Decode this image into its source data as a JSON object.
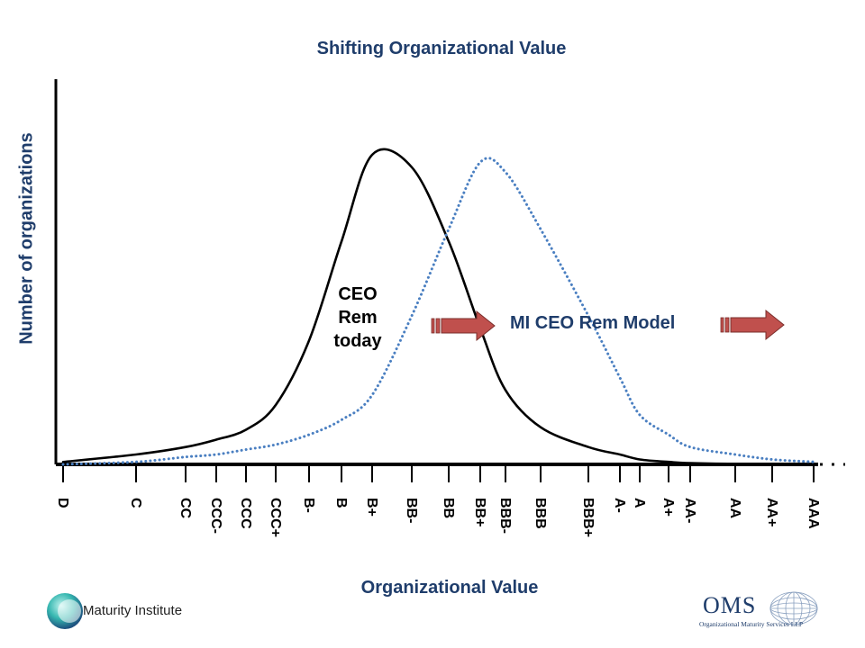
{
  "chart_data": {
    "type": "line",
    "title": "Shifting Organizational Value",
    "xlabel": "Organizational Value",
    "ylabel": "Number of organizations",
    "categories": [
      "D",
      "C",
      "CC",
      "CCC-",
      "CCC",
      "CCC+",
      "B-",
      "B",
      "B+",
      "BB-",
      "BB",
      "BB+",
      "BBB-",
      "BBB",
      "BBB+",
      "A-",
      "A",
      "A+",
      "AA-",
      "AA",
      "AA+",
      "AAA"
    ],
    "series": [
      {
        "name": "CEO Rem today",
        "style": "solid",
        "color": "#000000",
        "values": [
          1,
          4,
          7,
          10,
          14,
          24,
          50,
          90,
          125,
          120,
          90,
          55,
          30,
          15,
          7,
          4,
          2,
          1,
          0.5,
          0.2,
          0.1,
          0
        ]
      },
      {
        "name": "MI CEO Rem Model",
        "style": "dotted",
        "color": "#4a7fc1",
        "values": [
          0,
          1,
          3,
          4,
          6,
          8,
          12,
          18,
          28,
          60,
          95,
          122,
          118,
          95,
          60,
          35,
          20,
          12,
          7,
          4,
          2,
          1
        ]
      }
    ],
    "annotations": {
      "left_label": [
        "CEO",
        "Rem",
        "today"
      ],
      "right_label": "MI CEO Rem Model"
    },
    "arrow_color": "#c0504d",
    "title_color": "#1f3d6b",
    "grid": false,
    "legend": "none"
  },
  "logos": {
    "left_text": "Maturity Institute",
    "right_main": "OMS",
    "right_tagline": "Organizational Maturity Services LLP"
  }
}
